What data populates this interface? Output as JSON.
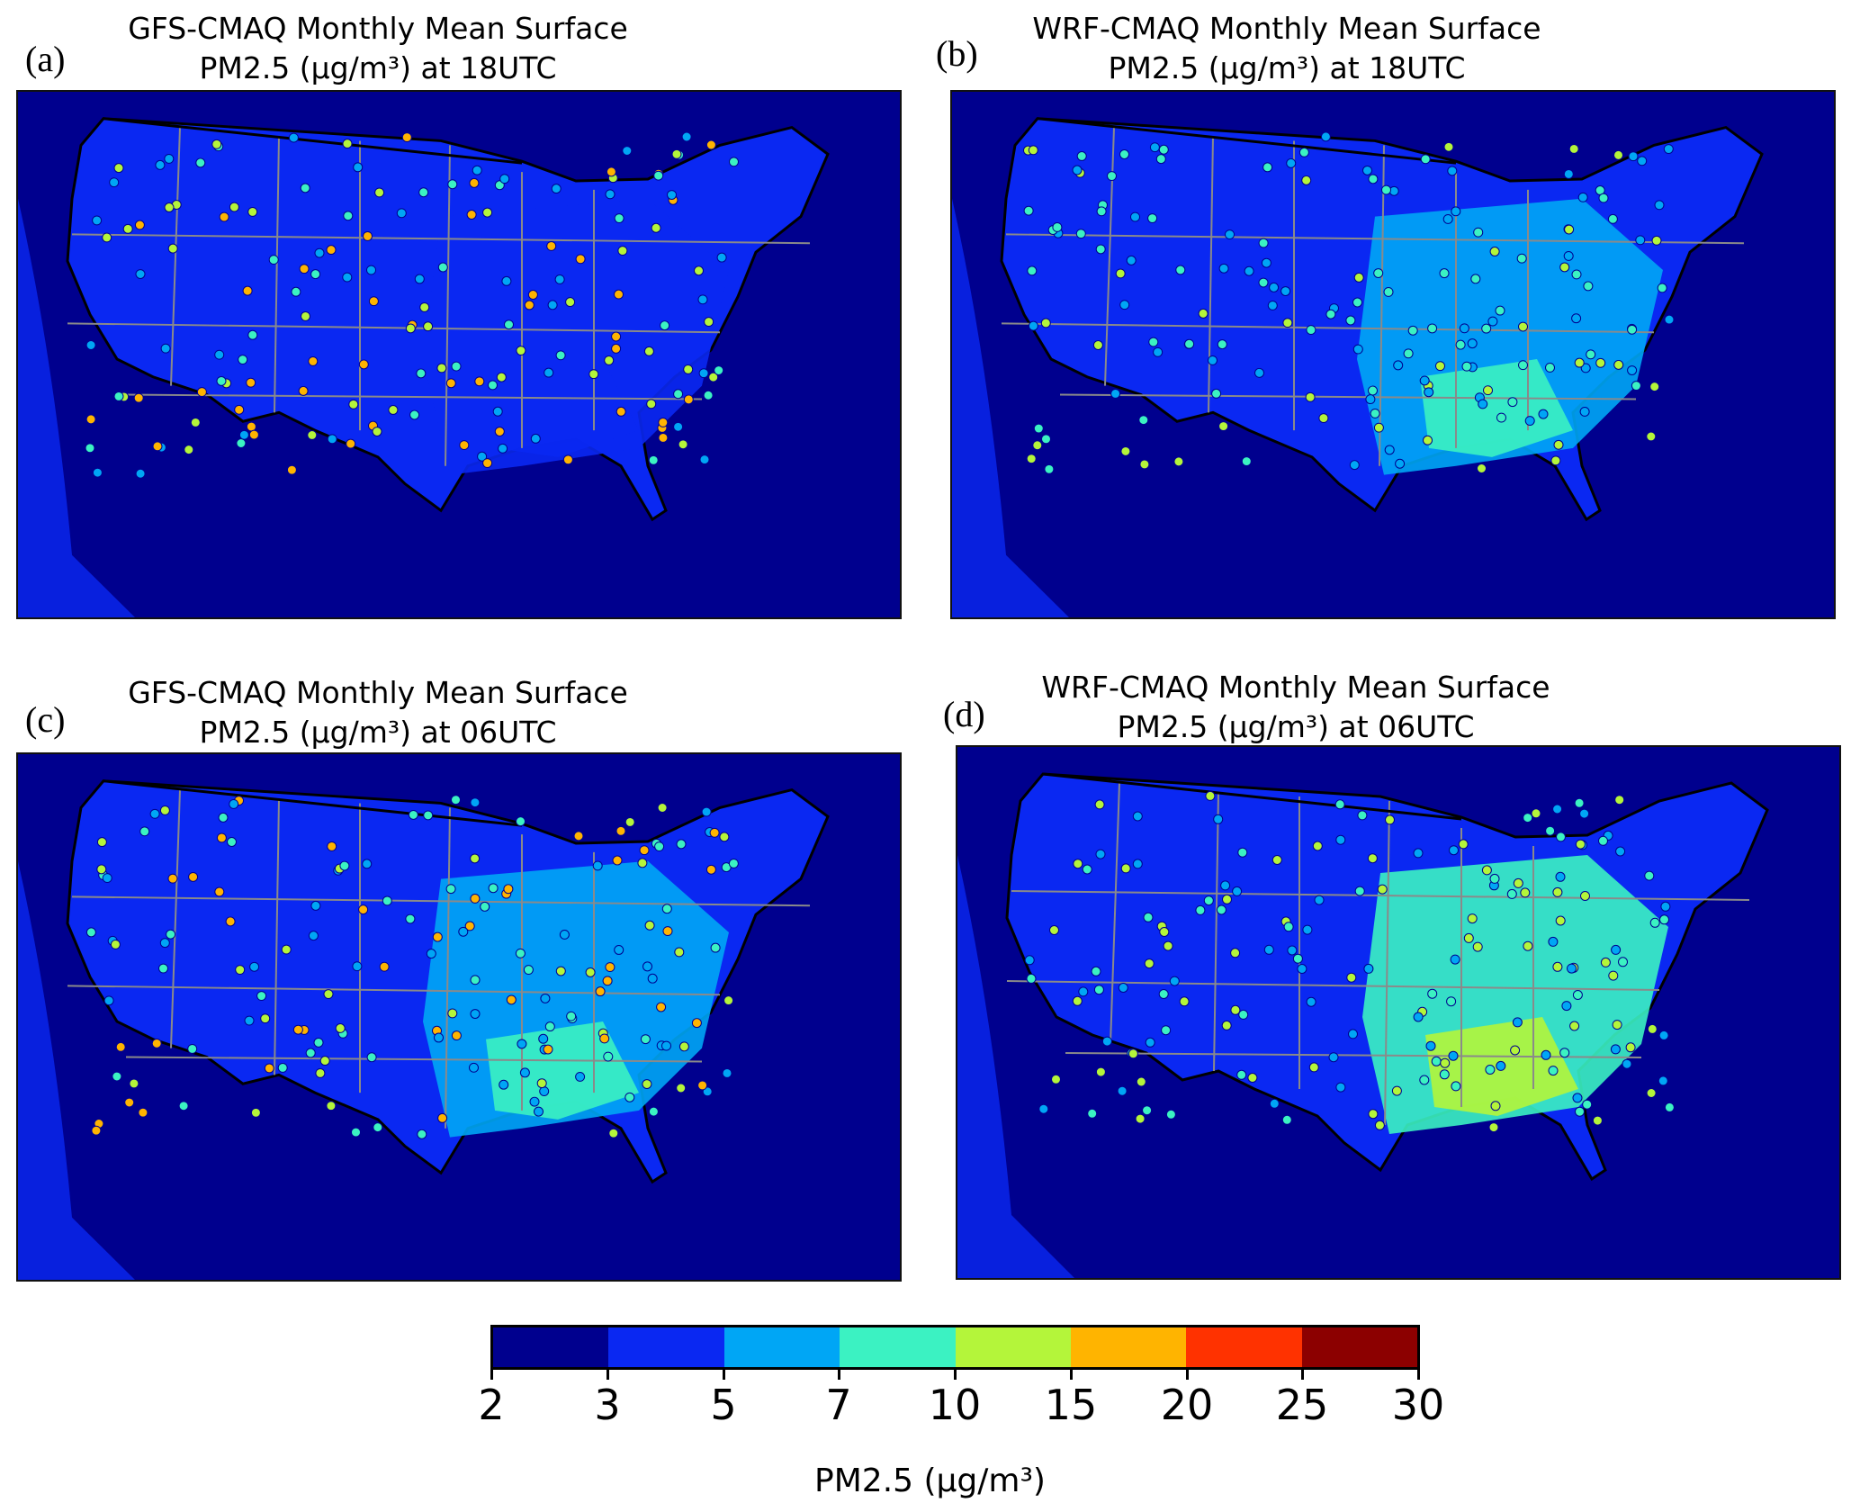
{
  "panels": [
    {
      "label": "(a)",
      "title1": "GFS-CMAQ Monthly Mean Surface",
      "title2": "PM2.5 (μg/m³) at 18UTC"
    },
    {
      "label": "(b)",
      "title1": "WRF-CMAQ Monthly Mean Surface",
      "title2": "PM2.5 (μg/m³) at 18UTC"
    },
    {
      "label": "(c)",
      "title1": "GFS-CMAQ Monthly Mean Surface",
      "title2": "PM2.5 (μg/m³) at 06UTC"
    },
    {
      "label": "(d)",
      "title1": "WRF-CMAQ Monthly Mean Surface",
      "title2": "PM2.5 (μg/m³) at 06UTC"
    }
  ],
  "colorbar": {
    "ticks": [
      "2",
      "3",
      "5",
      "7",
      "10",
      "15",
      "20",
      "25",
      "30"
    ],
    "colors": [
      "#00008e",
      "#0a28f2",
      "#00a6f5",
      "#3bf2c2",
      "#b4f53a",
      "#ffb400",
      "#ff3200",
      "#8c0000"
    ],
    "label": "PM2.5 (μg/m³)"
  },
  "colors": {
    "ocean": "#00008e",
    "land_low": "#0a28f2",
    "state_lines": "#8a8a8a",
    "coast": "#000000"
  }
}
